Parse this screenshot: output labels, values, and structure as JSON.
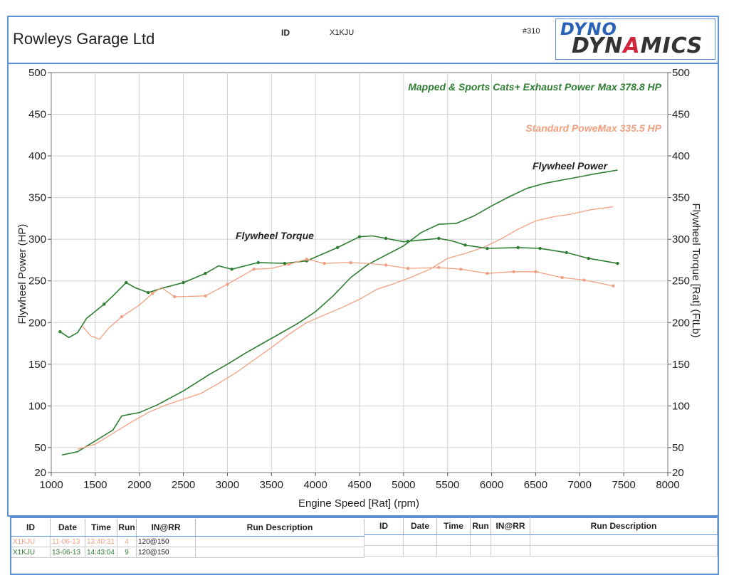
{
  "header": {
    "company": "Rowleys Garage Ltd",
    "id_label": "ID",
    "id_value": "X1KJU",
    "run_ref": "#310",
    "logo_line1": "DYNO",
    "logo_line2_a": "DYN",
    "logo_line2_b": "A",
    "logo_line2_c": "MICS"
  },
  "colors": {
    "mapped": "#2e7d32",
    "standard": "#f0a080",
    "frame": "#5b8fd6"
  },
  "chart_data": {
    "type": "line",
    "xlabel": "Engine Speed [Rat] (rpm)",
    "ylabel": "Flywheel Power (HP)",
    "y2label": "Flywheel Torque [Rat] (FtLb)",
    "xlim": [
      1000,
      8000
    ],
    "ylim": [
      20,
      500
    ],
    "y2lim": [
      20,
      500
    ],
    "x_ticks": [
      "1000",
      "1500",
      "2000",
      "2500",
      "3000",
      "3500",
      "4000",
      "4500",
      "5000",
      "5500",
      "6000",
      "6500",
      "7000",
      "7500",
      "8000"
    ],
    "y_ticks": [
      "20",
      "50",
      "100",
      "150",
      "200",
      "250",
      "300",
      "350",
      "400",
      "450",
      "500"
    ],
    "legend": [
      {
        "name": "Mapped & Sports Cats+ Exhaust Power",
        "max": "Max 378.8 HP",
        "color": "#2e7d32"
      },
      {
        "name": "Standard Power",
        "max": "Max 335.5 HP",
        "color": "#f0a080"
      }
    ],
    "annotations": {
      "power": "Flywheel Power",
      "torque": "Flywheel Torque"
    },
    "series": [
      {
        "name": "Mapped Power",
        "color": "#2e7d32",
        "x": [
          1120,
          1300,
          1500,
          1700,
          1800,
          2000,
          2200,
          2500,
          2800,
          3000,
          3200,
          3400,
          3600,
          3800,
          4000,
          4200,
          4400,
          4600,
          4800,
          5000,
          5200,
          5400,
          5600,
          5800,
          6000,
          6200,
          6400,
          6600,
          6800,
          7000,
          7200,
          7430
        ],
        "values": [
          41,
          45,
          58,
          71,
          88,
          92,
          101,
          118,
          138,
          150,
          163,
          175,
          187,
          199,
          213,
          232,
          254,
          270,
          281,
          292,
          308,
          318,
          319,
          328,
          340,
          351,
          361,
          367,
          371,
          375,
          379,
          383
        ]
      },
      {
        "name": "Standard Power",
        "color": "#f0a080",
        "x": [
          1300,
          1500,
          1700,
          1900,
          2100,
          2300,
          2500,
          2700,
          2900,
          3100,
          3300,
          3500,
          3700,
          3900,
          4100,
          4300,
          4500,
          4700,
          4900,
          5100,
          5300,
          5500,
          5700,
          5900,
          6100,
          6300,
          6500,
          6700,
          6900,
          7100,
          7380
        ],
        "values": [
          48,
          54,
          67,
          80,
          92,
          101,
          108,
          115,
          127,
          140,
          155,
          170,
          186,
          200,
          209,
          218,
          228,
          240,
          247,
          255,
          264,
          277,
          283,
          290,
          300,
          312,
          322,
          327,
          330,
          335,
          339
        ]
      },
      {
        "name": "Mapped Torque",
        "color": "#2e7d32",
        "x": [
          1100,
          1200,
          1300,
          1400,
          1600,
          1700,
          1850,
          1950,
          2100,
          2250,
          2500,
          2750,
          2900,
          3050,
          3350,
          3650,
          3900,
          4250,
          4500,
          4650,
          4800,
          5000,
          5400,
          5550,
          5700,
          5950,
          6300,
          6550,
          6850,
          7100,
          7430
        ],
        "values": [
          189,
          182,
          188,
          205,
          222,
          232,
          248,
          242,
          236,
          241,
          248,
          259,
          268,
          264,
          272,
          271,
          274,
          290,
          303,
          304,
          301,
          297,
          301,
          298,
          293,
          289,
          290,
          289,
          284,
          277,
          271
        ],
        "markers": [
          1100,
          1600,
          1850,
          2100,
          2500,
          2750,
          3050,
          3350,
          3650,
          3900,
          4250,
          4500,
          4800,
          5050,
          5400,
          5700,
          5950,
          6300,
          6550,
          6850,
          7100,
          7430
        ]
      },
      {
        "name": "Standard Torque",
        "color": "#f0a080",
        "x": [
          1350,
          1450,
          1550,
          1650,
          1800,
          2000,
          2150,
          2250,
          2400,
          2750,
          3000,
          3300,
          3500,
          3700,
          3900,
          4100,
          4350,
          4600,
          4800,
          5050,
          5400,
          5650,
          5950,
          6250,
          6500,
          6800,
          7050,
          7380
        ],
        "values": [
          196,
          184,
          180,
          193,
          207,
          221,
          235,
          242,
          231,
          232,
          246,
          264,
          265,
          270,
          276,
          271,
          272,
          271,
          269,
          265,
          266,
          264,
          259,
          261,
          261,
          254,
          251,
          244
        ],
        "markers": [
          1800,
          2150,
          2400,
          2750,
          3000,
          3300,
          3700,
          3900,
          4100,
          4400,
          4800,
          5050,
          5400,
          5650,
          5950,
          6250,
          6500,
          6800,
          7050,
          7380
        ]
      }
    ]
  },
  "runs": {
    "headers": [
      "ID",
      "Date",
      "Time",
      "Run",
      "IN@RR",
      "Run Description"
    ],
    "headers_right": [
      "ID",
      "Date",
      "Time",
      "Run",
      "IN@RR",
      "Run Description"
    ],
    "rows": [
      {
        "id": "X1KJU",
        "date": "11-06-13",
        "time": "13:40:31",
        "run": "4",
        "inrr": "120@150",
        "desc": ""
      },
      {
        "id": "X1KJU",
        "date": "13-06-13",
        "time": "14:43:04",
        "run": "9",
        "inrr": "120@150",
        "desc": ""
      }
    ]
  }
}
